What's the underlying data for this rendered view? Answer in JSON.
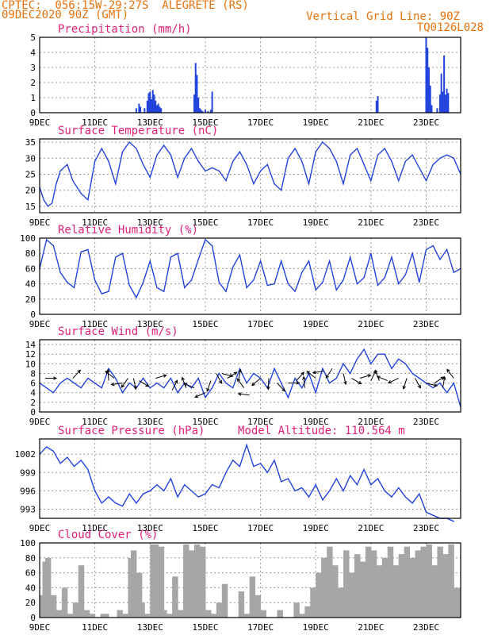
{
  "header": {
    "station": "CPTEC:  056:15W-29:27S  ALEGRETE (RS)",
    "run": "09DEC2020 90Z (GMT)",
    "grid_note": "Vertical Grid Line: 90Z",
    "code": "TQ0126L028"
  },
  "colors": {
    "header": "#e8720c",
    "title": "#e0207a",
    "line": "#2244dd",
    "cloud": "#a6a6a6",
    "grid": "#999999"
  },
  "x_axis": {
    "day_ticks": [
      "9DEC",
      "11DEC",
      "13DEC",
      "15DEC",
      "17DEC",
      "19DEC",
      "21DEC",
      "23DEC"
    ],
    "day_index": [
      0,
      2,
      4,
      6,
      8,
      10,
      12,
      14
    ],
    "total_days": 15.25
  },
  "chart_data": [
    {
      "id": "precipitation",
      "type": "bar",
      "title": "Precipitation (mm/h)",
      "ylim": [
        0,
        5
      ],
      "yticks": [
        0,
        1,
        2,
        3,
        4,
        5
      ],
      "x": [
        3.5,
        3.6,
        3.65,
        3.8,
        3.9,
        3.95,
        4.0,
        4.05,
        4.1,
        4.15,
        4.2,
        4.25,
        4.3,
        4.35,
        4.4,
        5.6,
        5.65,
        5.7,
        5.75,
        5.8,
        5.85,
        5.9,
        6.0,
        6.1,
        6.2,
        6.25,
        12.2,
        12.25,
        14.0,
        14.05,
        14.1,
        14.15,
        14.2,
        14.4,
        14.5,
        14.55,
        14.6,
        14.65,
        14.7,
        14.75,
        14.8
      ],
      "values": [
        0.3,
        0.6,
        0.4,
        0.3,
        0.8,
        1.3,
        1.4,
        0.9,
        1.5,
        1.2,
        0.8,
        0.5,
        0.6,
        0.4,
        0.3,
        1.2,
        3.3,
        2.5,
        1.0,
        0.3,
        0.2,
        0.1,
        0.2,
        0.1,
        0.2,
        1.4,
        0.8,
        1.1,
        5.0,
        4.3,
        3.0,
        1.8,
        0.5,
        0.3,
        1.2,
        2.6,
        1.4,
        3.8,
        1.2,
        1.6,
        1.3
      ]
    },
    {
      "id": "temperature",
      "type": "line",
      "title": "Surface Temperature (nC)",
      "ylim": [
        13,
        36
      ],
      "yticks": [
        15,
        20,
        25,
        30,
        35
      ],
      "x": [
        0,
        0.15,
        0.3,
        0.45,
        0.6,
        0.75,
        1,
        1.2,
        1.5,
        1.75,
        2,
        2.25,
        2.5,
        2.75,
        3,
        3.25,
        3.5,
        3.75,
        4,
        4.25,
        4.5,
        4.75,
        5,
        5.25,
        5.5,
        5.75,
        6,
        6.25,
        6.5,
        6.75,
        7,
        7.25,
        7.5,
        7.75,
        8,
        8.25,
        8.5,
        8.75,
        9,
        9.25,
        9.5,
        9.75,
        10,
        10.25,
        10.5,
        10.75,
        11,
        11.25,
        11.5,
        11.75,
        12,
        12.25,
        12.5,
        12.75,
        13,
        13.25,
        13.5,
        13.75,
        14,
        14.25,
        14.5,
        14.75,
        15,
        15.25
      ],
      "values": [
        21,
        17,
        15,
        16,
        22,
        26,
        28,
        23,
        19,
        17,
        29,
        33,
        29,
        22,
        32,
        35,
        33,
        28,
        24,
        31,
        34,
        31,
        24,
        30,
        33,
        29,
        26,
        27,
        26,
        23,
        29,
        32,
        28,
        22,
        26,
        28,
        22,
        20,
        30,
        33,
        29,
        22,
        32,
        35,
        33,
        29,
        22,
        31,
        33,
        28,
        23,
        31,
        33,
        29,
        23,
        29,
        31,
        27,
        23,
        28,
        30,
        31,
        30,
        25
      ]
    },
    {
      "id": "humidity",
      "type": "line",
      "title": "Relative Humidity (%)",
      "ylim": [
        0,
        100
      ],
      "yticks": [
        0,
        20,
        40,
        60,
        80,
        100
      ],
      "x": [
        0,
        0.25,
        0.5,
        0.75,
        1,
        1.25,
        1.5,
        1.75,
        2,
        2.25,
        2.5,
        2.75,
        3,
        3.25,
        3.5,
        3.75,
        4,
        4.25,
        4.5,
        4.75,
        5,
        5.25,
        5.5,
        5.75,
        6,
        6.25,
        6.5,
        6.75,
        7,
        7.25,
        7.5,
        7.75,
        8,
        8.25,
        8.5,
        8.75,
        9,
        9.25,
        9.5,
        9.75,
        10,
        10.25,
        10.5,
        10.75,
        11,
        11.25,
        11.5,
        11.75,
        12,
        12.25,
        12.5,
        12.75,
        13,
        13.25,
        13.5,
        13.75,
        14,
        14.25,
        14.5,
        14.75,
        15,
        15.25
      ],
      "values": [
        60,
        98,
        90,
        55,
        42,
        35,
        82,
        85,
        45,
        27,
        30,
        75,
        80,
        38,
        22,
        42,
        70,
        35,
        30,
        75,
        80,
        35,
        45,
        72,
        98,
        90,
        42,
        30,
        62,
        78,
        35,
        45,
        70,
        38,
        40,
        70,
        40,
        30,
        55,
        70,
        32,
        42,
        70,
        32,
        45,
        75,
        40,
        48,
        80,
        38,
        48,
        75,
        40,
        52,
        80,
        42,
        85,
        90,
        72,
        85,
        55,
        60
      ]
    },
    {
      "id": "wind",
      "type": "line",
      "title": "Surface Wind (m/s)",
      "ylim": [
        0,
        15
      ],
      "yticks": [
        0,
        2,
        4,
        6,
        8,
        10,
        12,
        14
      ],
      "x": [
        0,
        0.25,
        0.5,
        0.75,
        1,
        1.25,
        1.5,
        1.75,
        2,
        2.25,
        2.5,
        2.75,
        3,
        3.25,
        3.5,
        3.75,
        4,
        4.25,
        4.5,
        4.75,
        5,
        5.25,
        5.5,
        5.75,
        6,
        6.25,
        6.5,
        6.75,
        7,
        7.25,
        7.5,
        7.75,
        8,
        8.25,
        8.5,
        8.75,
        9,
        9.25,
        9.5,
        9.75,
        10,
        10.25,
        10.5,
        10.75,
        11,
        11.25,
        11.5,
        11.75,
        12,
        12.25,
        12.5,
        12.75,
        13,
        13.25,
        13.5,
        13.75,
        14,
        14.25,
        14.5,
        14.75,
        15,
        15.25
      ],
      "values": [
        6,
        5,
        4,
        6,
        7,
        6,
        5,
        7,
        6,
        5,
        9,
        7,
        4,
        6,
        5,
        7,
        5,
        6,
        5,
        7,
        4,
        6,
        5,
        7,
        3,
        5,
        8,
        6,
        5,
        9,
        6,
        8,
        7,
        5,
        9,
        6,
        3,
        7,
        5,
        8,
        4,
        9,
        6,
        7,
        10,
        8,
        11,
        13,
        10,
        12,
        12,
        9,
        11,
        10,
        8,
        7,
        6,
        5,
        6,
        4,
        6,
        1
      ]
    },
    {
      "id": "pressure",
      "type": "line",
      "title": "Surface Pressure (hPa)",
      "annotation": "Model Altitude: 110.564  m",
      "ylim": [
        991.5,
        1004.5
      ],
      "yticks": [
        993,
        996,
        999,
        1002
      ],
      "x": [
        0,
        0.25,
        0.5,
        0.75,
        1,
        1.25,
        1.5,
        1.75,
        2,
        2.25,
        2.5,
        2.75,
        3,
        3.25,
        3.5,
        3.75,
        4,
        4.25,
        4.5,
        4.75,
        5,
        5.25,
        5.5,
        5.75,
        6,
        6.25,
        6.5,
        6.75,
        7,
        7.25,
        7.5,
        7.75,
        8,
        8.25,
        8.5,
        8.75,
        9,
        9.25,
        9.5,
        9.75,
        10,
        10.25,
        10.5,
        10.75,
        11,
        11.25,
        11.5,
        11.75,
        12,
        12.25,
        12.5,
        12.75,
        13,
        13.25,
        13.5,
        13.75,
        14,
        14.25,
        14.5,
        14.75,
        15
      ],
      "values": [
        1002,
        1003.2,
        1002.5,
        1000.5,
        1001.5,
        1000,
        1001,
        999.5,
        996,
        994,
        995,
        994,
        993.5,
        995.5,
        994,
        995.5,
        996,
        997,
        996,
        998,
        995,
        997,
        996,
        995,
        995.5,
        997,
        996.5,
        999,
        1001,
        1000,
        1003.5,
        1000,
        1000.5,
        999,
        1001,
        997.5,
        998,
        996,
        996.5,
        995,
        997,
        994.5,
        996,
        998,
        996,
        998.5,
        997,
        999.5,
        997,
        998,
        996,
        995,
        996.5,
        995,
        994,
        995.5,
        992.5,
        992,
        991.5,
        991.5,
        991
      ]
    },
    {
      "id": "cloud",
      "type": "area",
      "title": "Cloud Cover (%)",
      "ylim": [
        0,
        100
      ],
      "yticks": [
        0,
        20,
        40,
        60,
        80,
        100
      ],
      "x": [
        0,
        0.1,
        0.2,
        0.4,
        0.6,
        0.8,
        1,
        1.2,
        1.4,
        1.6,
        1.8,
        2,
        2.2,
        2.5,
        2.8,
        3,
        3.2,
        3.3,
        3.5,
        3.7,
        3.8,
        4,
        4.1,
        4.3,
        4.5,
        4.6,
        4.8,
        5,
        5.2,
        5.4,
        5.6,
        5.8,
        6,
        6.2,
        6.4,
        6.6,
        6.8,
        7,
        7.2,
        7.4,
        7.6,
        7.8,
        8,
        8.2,
        8.4,
        8.6,
        8.8,
        9,
        9.2,
        9.4,
        9.6,
        9.8,
        10,
        10.2,
        10.4,
        10.6,
        10.8,
        11,
        11.2,
        11.4,
        11.6,
        11.8,
        12,
        12.2,
        12.4,
        12.6,
        12.8,
        13,
        13.2,
        13.4,
        13.6,
        13.8,
        14,
        14.2,
        14.4,
        14.6,
        14.8,
        15,
        15.25
      ],
      "values": [
        30,
        75,
        80,
        30,
        10,
        40,
        5,
        20,
        70,
        10,
        5,
        0,
        5,
        0,
        10,
        5,
        80,
        90,
        60,
        20,
        5,
        98,
        98,
        95,
        10,
        5,
        55,
        10,
        98,
        90,
        98,
        95,
        10,
        5,
        20,
        45,
        0,
        0,
        35,
        5,
        55,
        30,
        10,
        0,
        0,
        10,
        0,
        0,
        20,
        5,
        15,
        40,
        60,
        80,
        95,
        70,
        40,
        90,
        60,
        85,
        75,
        95,
        90,
        70,
        80,
        95,
        70,
        85,
        95,
        80,
        90,
        95,
        98,
        70,
        95,
        85,
        98,
        40,
        20
      ]
    },
    {
      "id": "wind_arrows",
      "type": "scatter",
      "x": [
        0.2,
        1.2,
        2.5,
        2.7,
        3.0,
        3.2,
        3.4,
        3.6,
        4.2,
        4.8,
        5.3,
        5.6,
        6.0,
        6.2,
        6.4,
        6.6,
        6.8,
        7.2,
        7.4,
        7.6,
        8.0,
        8.3,
        8.6,
        9.0,
        9.3,
        9.6,
        10.0,
        10.3,
        10.6,
        11.0,
        11.3,
        11.6,
        12.0,
        12.3,
        12.6,
        13.0,
        13.3,
        13.6,
        14.0,
        14.3,
        14.6,
        15.0
      ],
      "values": [
        7,
        7,
        6.5,
        7,
        6,
        7,
        7,
        6.5,
        7,
        4.5,
        5,
        5,
        4,
        6.5,
        8,
        8,
        7,
        6.5,
        5,
        3.5,
        7,
        7,
        6,
        6,
        6.5,
        5,
        7,
        8.5,
        9,
        8,
        7,
        7,
        6.5,
        6.5,
        6.5,
        7,
        7,
        7,
        6,
        6,
        5,
        7
      ]
    }
  ]
}
